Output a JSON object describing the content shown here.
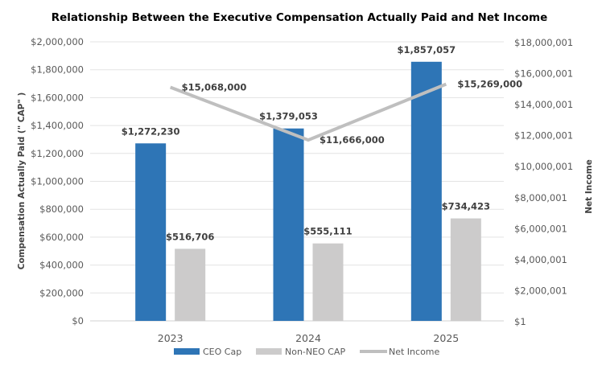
{
  "chart_data": {
    "type": "bar",
    "title": "Relationship Between the Executive Compensation Actually Paid and Net Income",
    "categories": [
      "2023",
      "2024",
      "2025"
    ],
    "series": [
      {
        "name": "CEO Cap",
        "kind": "bar",
        "axis": "left",
        "color": "#2E75B6",
        "values": [
          1272230,
          1379053,
          1857057
        ],
        "labels": [
          "$1,272,230",
          "$1,379,053",
          "$1,857,057"
        ]
      },
      {
        "name": "Non-NEO CAP",
        "kind": "bar",
        "axis": "left",
        "color": "#CCCBCB",
        "values": [
          516706,
          555111,
          734423
        ],
        "labels": [
          "$516,706",
          "$555,111",
          "$734,423"
        ]
      },
      {
        "name": "Net Income",
        "kind": "line",
        "axis": "right",
        "color": "#BFBFBF",
        "values": [
          15068000,
          11666000,
          15269000
        ],
        "labels": [
          "$15,068,000",
          "$11,666,000",
          "$15,269,000"
        ]
      }
    ],
    "ylabel": "Compensation Actually Paid (\" CAP\" )",
    "ylim": [
      0,
      2000000
    ],
    "yticks": [
      0,
      200000,
      400000,
      600000,
      800000,
      1000000,
      1200000,
      1400000,
      1600000,
      1800000,
      2000000
    ],
    "ytick_labels": [
      "$0",
      "$200,000",
      "$400,000",
      "$600,000",
      "$800,000",
      "$1,000,000",
      "$1,200,000",
      "$1,400,000",
      "$1,600,000",
      "$1,800,000",
      "$2,000,000"
    ],
    "y2label": "Net Income",
    "y2lim": [
      1,
      18000001
    ],
    "y2ticks": [
      1,
      2000001,
      4000001,
      6000001,
      8000001,
      10000001,
      12000001,
      14000001,
      16000001,
      18000001
    ],
    "y2tick_labels": [
      "$1",
      "$2,000,001",
      "$4,000,001",
      "$6,000,001",
      "$8,000,001",
      "$10,000,001",
      "$12,000,001",
      "$14,000,001",
      "$16,000,001",
      "$18,000,001"
    ],
    "grid": true,
    "legend": "bottom"
  }
}
